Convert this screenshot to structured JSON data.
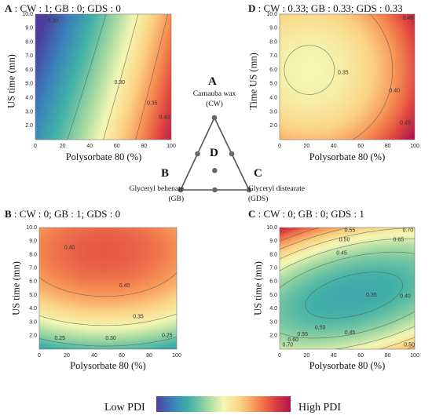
{
  "panels": [
    {
      "id": "A",
      "title_letter": "A",
      "title_rest": " : CW : 1; GB : 0; GDS : 0",
      "xlabel": "Polysorbate 80 (%)",
      "ylabel": "US time (mn)"
    },
    {
      "id": "D",
      "title_letter": "D",
      "title_rest": " : CW : 0.33; GB : 0.33; GDS : 0.33",
      "xlabel": "Polysorbate 80 (%)",
      "ylabel": "Time US (mn)"
    },
    {
      "id": "B",
      "title_letter": "B",
      "title_rest": " : CW : 0; GB : 1; GDS : 0",
      "xlabel": "Polysorbate 80 (%)",
      "ylabel": "US time (mn)"
    },
    {
      "id": "C",
      "title_letter": "C",
      "title_rest": " : CW : 0; GB : 0; GDS : 1",
      "xlabel": "Polysorbate 80 (%)",
      "ylabel": "US time (mn)"
    }
  ],
  "chart_data": [
    {
      "type": "heatmap",
      "panel": "A",
      "title": "A : CW : 1; GB : 0; GDS : 0",
      "xlabel": "Polysorbate 80 (%)",
      "ylabel": "US time (mn)",
      "xlim": [
        0,
        100
      ],
      "ylim": [
        1,
        10
      ],
      "x_ticks": [
        "0",
        "20",
        "40",
        "60",
        "80",
        "100"
      ],
      "y_ticks": [
        "2.0",
        "3.0",
        "4.0",
        "5.0",
        "6.0",
        "7.0",
        "8.0",
        "9.0",
        "10.0"
      ],
      "contour_labels": [
        {
          "text": "0.30",
          "x": 13,
          "y": 9.5
        },
        {
          "text": "0.30",
          "x": 62,
          "y": 5.1
        },
        {
          "text": "0.35",
          "x": 86,
          "y": 3.6
        },
        {
          "text": "0.40",
          "x": 95,
          "y": 2.6
        }
      ],
      "pdi_range": [
        0.22,
        0.47
      ]
    },
    {
      "type": "heatmap",
      "panel": "D",
      "title": "D : CW : 0.33; GB : 0.33; GDS : 0.33",
      "xlabel": "Polysorbate 80 (%)",
      "ylabel": "Time US (mn)",
      "xlim": [
        0,
        100
      ],
      "ylim": [
        1,
        10
      ],
      "x_ticks": [
        "0",
        "20",
        "40",
        "60",
        "80",
        "100"
      ],
      "y_ticks": [
        "2.0",
        "3.0",
        "4.0",
        "5.0",
        "6.0",
        "7.0",
        "8.0",
        "9.0",
        "10.0"
      ],
      "contour_labels": [
        {
          "text": "0.45",
          "x": 95,
          "y": 9.7
        },
        {
          "text": "0.35",
          "x": 47,
          "y": 5.8
        },
        {
          "text": "0.40",
          "x": 85,
          "y": 4.5
        },
        {
          "text": "0.45",
          "x": 93,
          "y": 2.2
        }
      ],
      "pdi_range": [
        0.22,
        0.47
      ]
    },
    {
      "type": "heatmap",
      "panel": "B",
      "title": "B : CW : 0; GB : 1; GDS : 0",
      "xlabel": "Polysorbate 80 (%)",
      "ylabel": "US time (mn)",
      "xlim": [
        0,
        100
      ],
      "ylim": [
        1,
        10
      ],
      "x_ticks": [
        "0",
        "20",
        "40",
        "60",
        "80",
        "100"
      ],
      "y_ticks": [
        "2.0",
        "3.0",
        "4.0",
        "5.0",
        "6.0",
        "7.0",
        "8.0",
        "9.0",
        "10.0"
      ],
      "contour_labels": [
        {
          "text": "0.40",
          "x": 22,
          "y": 8.5
        },
        {
          "text": "0.40",
          "x": 62,
          "y": 5.7
        },
        {
          "text": "0.35",
          "x": 72,
          "y": 3.4
        },
        {
          "text": "0.30",
          "x": 52,
          "y": 1.8
        },
        {
          "text": "0.25",
          "x": 15,
          "y": 1.8
        },
        {
          "text": "0.25",
          "x": 93,
          "y": 2.0
        }
      ],
      "pdi_range": [
        0.22,
        0.47
      ]
    },
    {
      "type": "heatmap",
      "panel": "C",
      "title": "C : CW : 0; GB : 0; GDS : 1",
      "xlabel": "Polysorbate 80 (%)",
      "ylabel": "US time (mn)",
      "xlim": [
        0,
        100
      ],
      "ylim": [
        1,
        10
      ],
      "x_ticks": [
        "0",
        "20",
        "40",
        "60",
        "80",
        "100"
      ],
      "y_ticks": [
        "2.0",
        "3.0",
        "4.0",
        "5.0",
        "6.0",
        "7.0",
        "8.0",
        "9.0",
        "10.0"
      ],
      "contour_labels": [
        {
          "text": "0.55",
          "x": 52,
          "y": 9.8
        },
        {
          "text": "0.70",
          "x": 95,
          "y": 9.8
        },
        {
          "text": "0.65",
          "x": 88,
          "y": 9.1
        },
        {
          "text": "0.50",
          "x": 48,
          "y": 9.1
        },
        {
          "text": "0.45",
          "x": 46,
          "y": 8.1
        },
        {
          "text": "0.35",
          "x": 68,
          "y": 5.0
        },
        {
          "text": "0.40",
          "x": 93,
          "y": 4.9
        },
        {
          "text": "0.50",
          "x": 30,
          "y": 2.6
        },
        {
          "text": "0.45",
          "x": 52,
          "y": 2.2
        },
        {
          "text": "0.55",
          "x": 17,
          "y": 2.1
        },
        {
          "text": "0.60",
          "x": 10,
          "y": 1.7
        },
        {
          "text": "0.70",
          "x": 6,
          "y": 1.3
        },
        {
          "text": "0.50",
          "x": 96,
          "y": 1.3
        }
      ],
      "pdi_range": [
        0.22,
        0.72
      ]
    }
  ],
  "triangle": {
    "vertex_top_letter": "A",
    "vertex_top_label_1": "Carnauba wax",
    "vertex_top_label_2": "(CW)",
    "vertex_left_letter": "B",
    "vertex_left_label_1": "Glyceryl behenate",
    "vertex_left_label_2": "(GB)",
    "vertex_right_letter": "C",
    "vertex_right_label_1": "Glyceryl distearate",
    "vertex_right_label_2": "(GDS)",
    "center_letter": "D"
  },
  "legend": {
    "low_label": "Low PDI",
    "high_label": "High PDI",
    "colors": [
      "#4b3f9e",
      "#3a83bb",
      "#43b2a7",
      "#9bd6a1",
      "#f4f7b3",
      "#fbd383",
      "#f68d52",
      "#e0443f",
      "#b0134a"
    ]
  }
}
